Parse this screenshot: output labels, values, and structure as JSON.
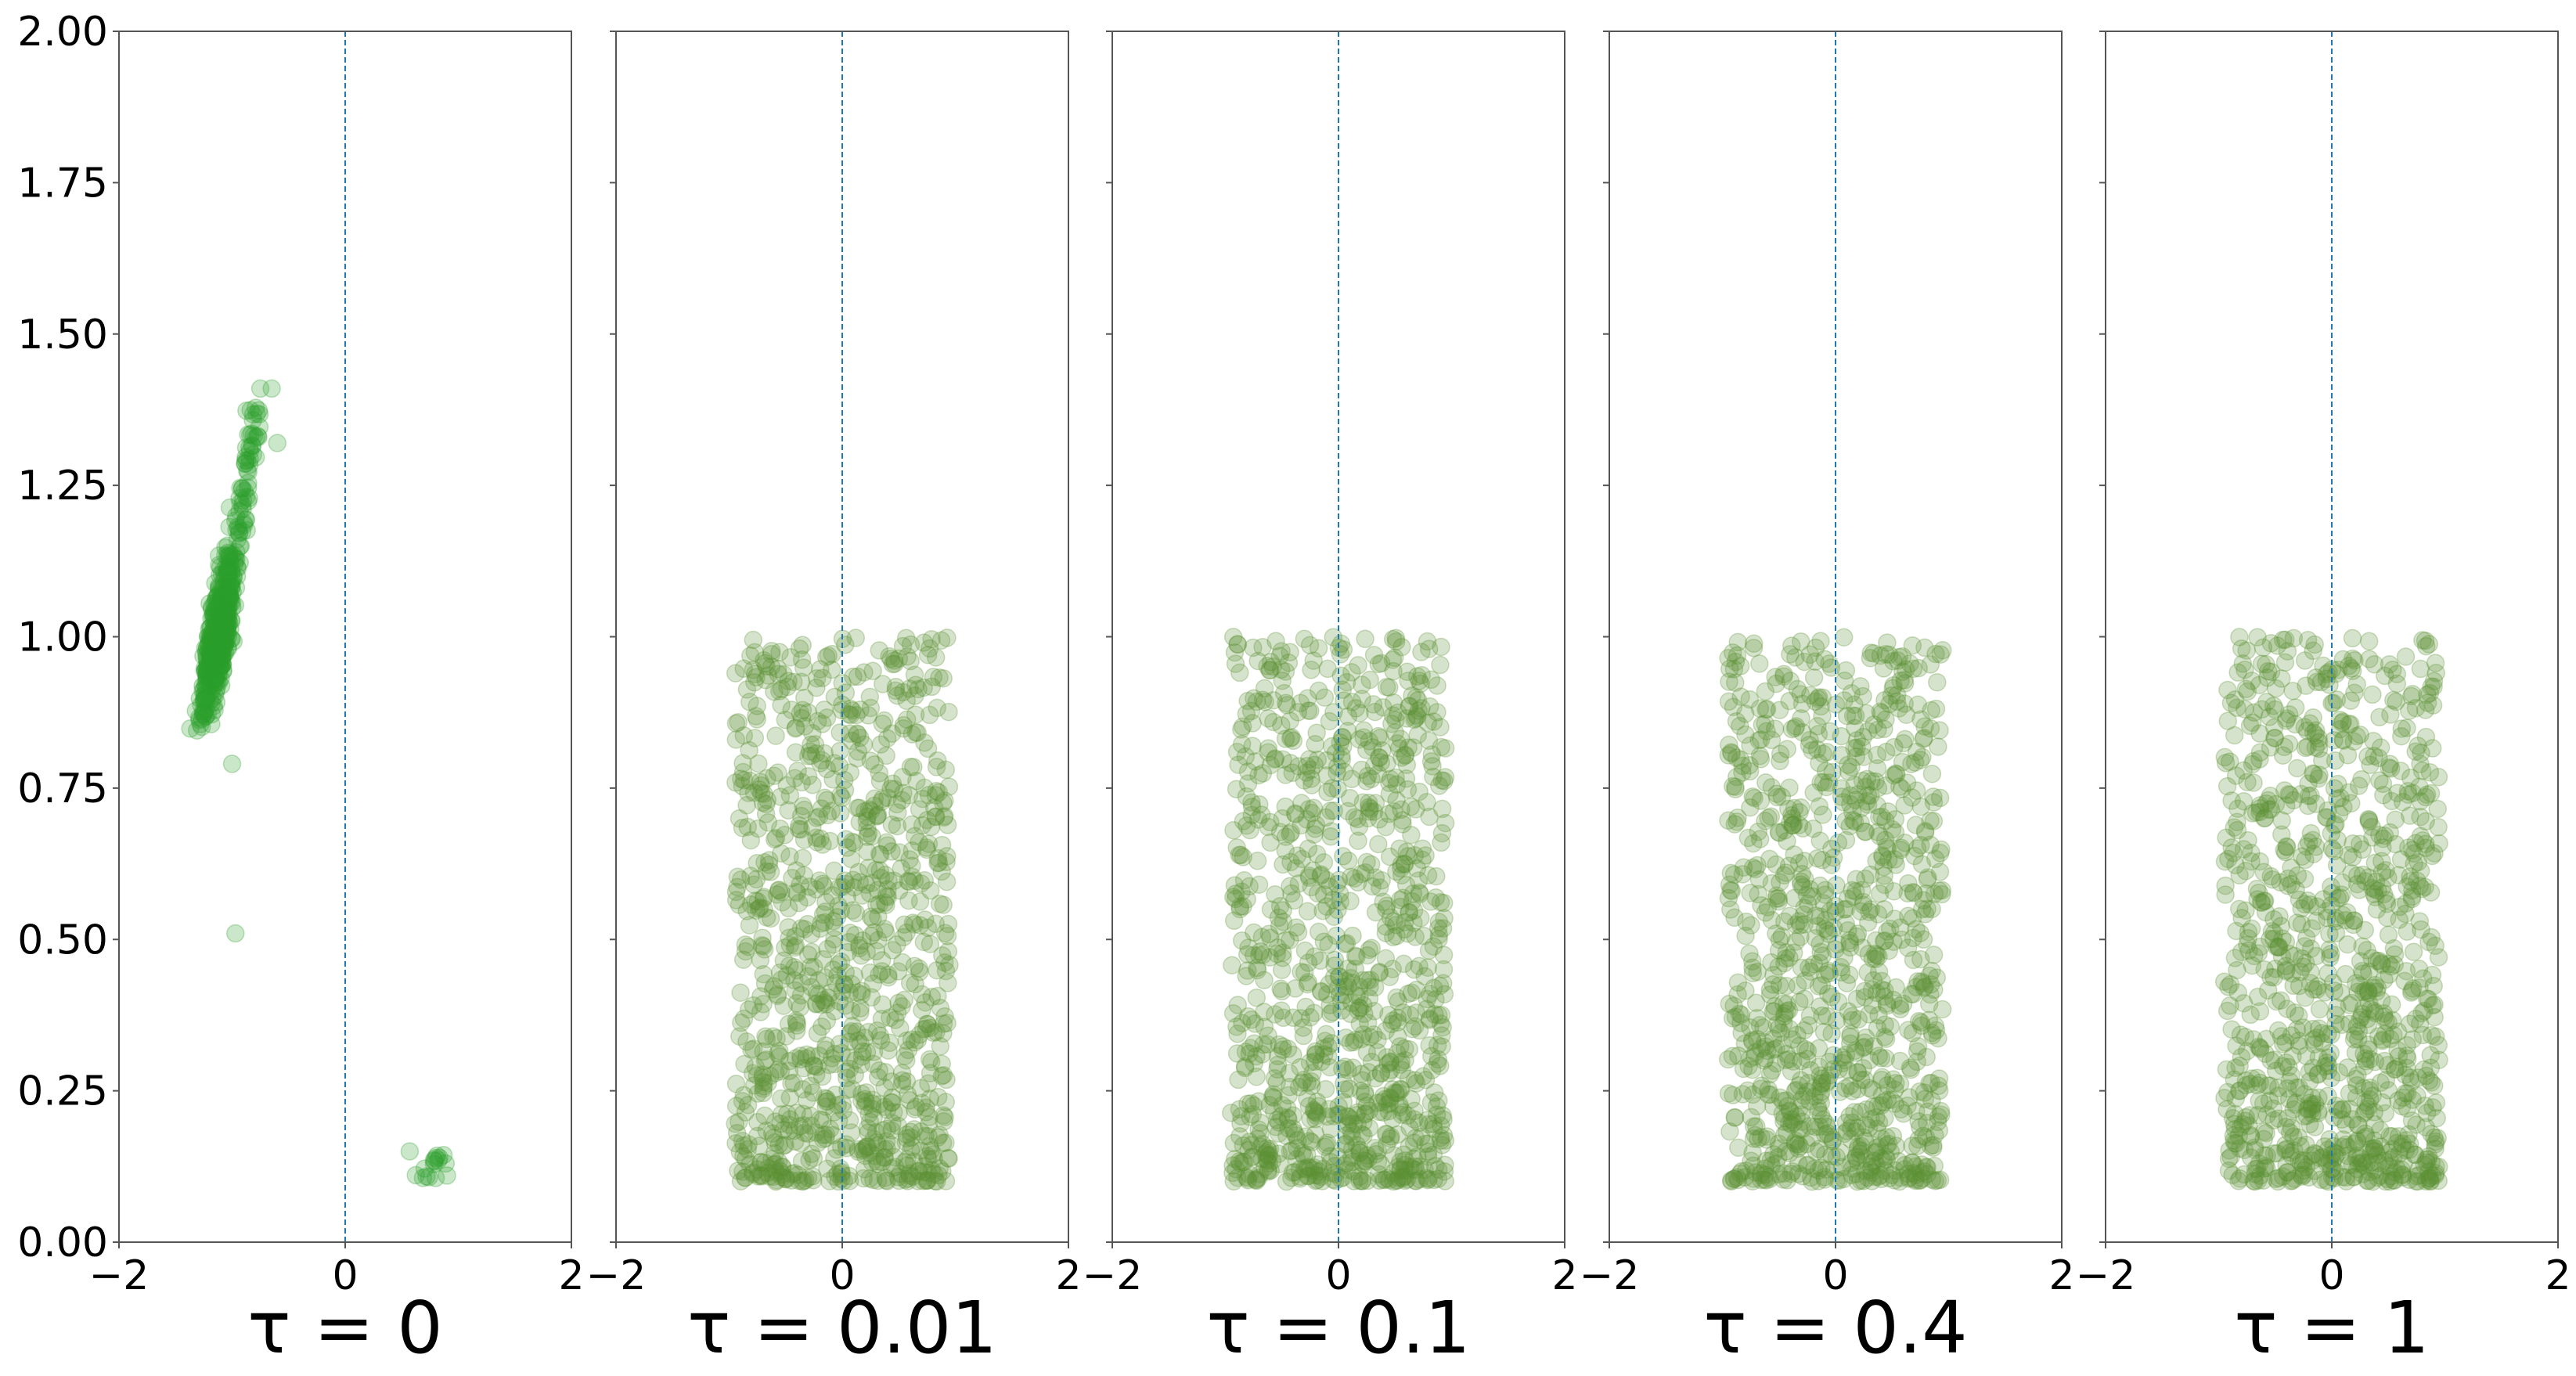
{
  "figure": {
    "panel_titles": [
      "τ = 0",
      "τ = 0.01",
      "τ = 0.1",
      "τ = 0.4",
      "τ = 1"
    ],
    "shared_y": true
  },
  "style": {
    "axes_color": "#555555",
    "ref_line_color": "#1f77b4",
    "point_color_panel1": "#2ca02c",
    "point_color_other": "#5a9132",
    "point_alpha": 0.25
  },
  "chart_data": [
    {
      "type": "scatter",
      "title": "τ = 0",
      "xlim": [
        -2,
        2
      ],
      "ylim": [
        0,
        2
      ],
      "xticks": [
        -2,
        0,
        2
      ],
      "yticks": [
        0.0,
        0.25,
        0.5,
        0.75,
        1.0,
        1.25,
        1.5,
        1.75,
        2.0
      ],
      "ytick_labels": [
        "0.00",
        "0.25",
        "0.50",
        "0.75",
        "1.00",
        "1.25",
        "1.50",
        "1.75",
        "2.00"
      ],
      "reference_line_x": 0,
      "clusters": [
        {
          "description": "main cluster",
          "x_center": -1.12,
          "x_spread": 0.09,
          "y_range": [
            0.85,
            1.4
          ],
          "trend": "x increases with y",
          "count": 700
        },
        {
          "description": "small cluster",
          "x_center": 0.75,
          "x_spread": 0.12,
          "y_range": [
            0.1,
            0.15
          ],
          "count": 15
        }
      ],
      "points": [
        [
          -0.97,
          0.51
        ],
        [
          -1.0,
          0.79
        ],
        [
          -0.65,
          1.41
        ],
        [
          -0.75,
          1.41
        ],
        [
          -0.6,
          1.32
        ],
        [
          0.57,
          0.15
        ],
        [
          0.9,
          0.11
        ]
      ]
    },
    {
      "type": "scatter",
      "title": "τ = 0.01",
      "xlim": [
        -2,
        2
      ],
      "ylim": [
        0,
        2
      ],
      "xticks": [
        -2,
        0,
        2
      ],
      "reference_line_x": 0,
      "distribution": {
        "x_range": [
          -0.95,
          0.95
        ],
        "y_range": [
          0.1,
          1.0
        ],
        "count": 1000,
        "density": "higher near bottom"
      }
    },
    {
      "type": "scatter",
      "title": "τ = 0.1",
      "xlim": [
        -2,
        2
      ],
      "ylim": [
        0,
        2
      ],
      "xticks": [
        -2,
        0,
        2
      ],
      "reference_line_x": 0,
      "distribution": {
        "x_range": [
          -0.95,
          0.95
        ],
        "y_range": [
          0.1,
          1.0
        ],
        "count": 1000,
        "density": "higher near bottom"
      }
    },
    {
      "type": "scatter",
      "title": "τ = 0.4",
      "xlim": [
        -2,
        2
      ],
      "ylim": [
        0,
        2
      ],
      "xticks": [
        -2,
        0,
        2
      ],
      "reference_line_x": 0,
      "distribution": {
        "x_range": [
          -0.95,
          0.95
        ],
        "y_range": [
          0.1,
          1.0
        ],
        "count": 1000,
        "density": "higher near bottom"
      }
    },
    {
      "type": "scatter",
      "title": "τ = 1",
      "xlim": [
        -2,
        2
      ],
      "ylim": [
        0,
        2
      ],
      "xticks": [
        -2,
        0,
        2
      ],
      "reference_line_x": 0,
      "distribution": {
        "x_range": [
          -0.95,
          0.95
        ],
        "y_range": [
          0.1,
          1.0
        ],
        "count": 1000,
        "density": "higher near bottom"
      }
    }
  ]
}
